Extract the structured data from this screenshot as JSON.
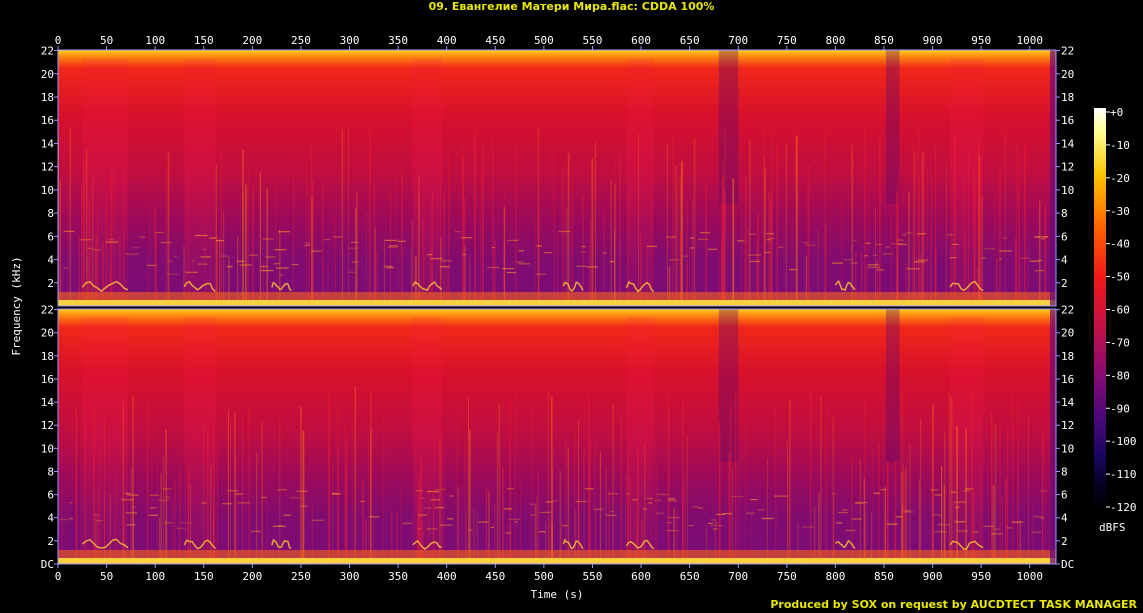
{
  "title": "09. Евангелие Матери Мира.flac: CDDA 100%",
  "footer": "Produced by SOX on request by AUCDTECT TASK MANAGER",
  "chart_data": {
    "type": "heatmap",
    "xlabel": "Time (s)",
    "ylabel": "Frequency (kHz)",
    "colorbar_label": "dBFS",
    "xlim": [
      0,
      1027
    ],
    "ylim": [
      0,
      22.05
    ],
    "zlim": [
      -120,
      0
    ],
    "x_ticks": [
      0,
      50,
      100,
      150,
      200,
      250,
      300,
      350,
      400,
      450,
      500,
      550,
      600,
      650,
      700,
      750,
      800,
      850,
      900,
      950,
      1000
    ],
    "y_tick_labels": [
      "DC",
      "2",
      "4",
      "6",
      "8",
      "10",
      "12",
      "14",
      "16",
      "18",
      "20",
      "22"
    ],
    "y_tick_values": [
      0,
      2,
      4,
      6,
      8,
      10,
      12,
      14,
      16,
      18,
      20,
      22
    ],
    "colorbar_ticks": [
      "+0",
      "-10",
      "-20",
      "-30",
      "-40",
      "-50",
      "-60",
      "-70",
      "-80",
      "-90",
      "-100",
      "-110",
      "-120"
    ],
    "colorbar_tick_values": [
      0,
      -10,
      -20,
      -30,
      -40,
      -50,
      -60,
      -70,
      -80,
      -90,
      -100,
      -110,
      -120
    ],
    "channels": [
      "left",
      "right"
    ],
    "loud_segments_s": [
      [
        25,
        72
      ],
      [
        130,
        162
      ],
      [
        365,
        395
      ],
      [
        585,
        613
      ],
      [
        918,
        952
      ]
    ],
    "quiet_segments_s": [
      [
        680,
        700
      ],
      [
        852,
        866
      ]
    ],
    "colors": {
      "text": "#ffffff",
      "title": "#e8e800",
      "axis": "#9999ff",
      "background": "#000000"
    }
  }
}
